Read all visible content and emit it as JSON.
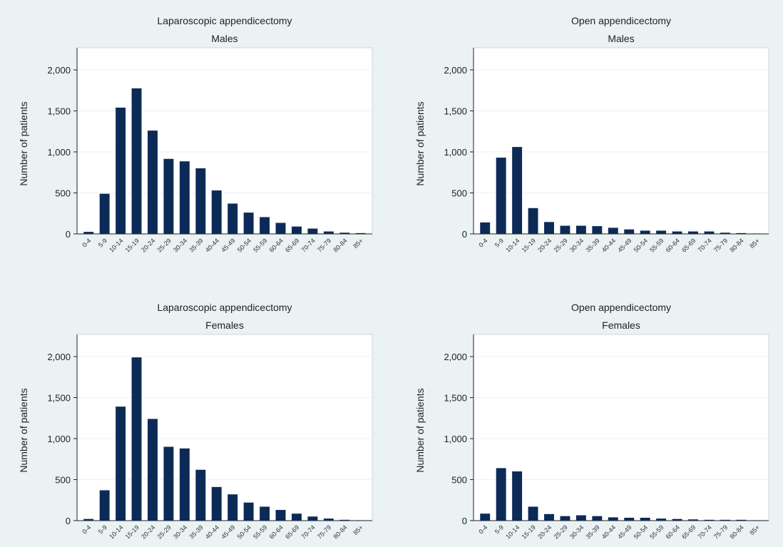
{
  "colors": {
    "bar": "#0d2a57",
    "figure_bg": "#eaf2f3",
    "plot_bg": "#ffffff"
  },
  "chart_data": [
    {
      "type": "bar",
      "title": "Laparoscopic appendicectomy",
      "subtitle": "Males",
      "xlabel": "",
      "ylabel": "Number of patients",
      "ylim": [
        0,
        2200
      ],
      "yticks": [
        "0",
        "500",
        "1,000",
        "1,500",
        "2,000"
      ],
      "ytick_values": [
        0,
        500,
        1000,
        1500,
        2000
      ],
      "grid": true,
      "categories": [
        "0-4",
        "5-9",
        "10-14",
        "15-19",
        "20-24",
        "25-29",
        "30-34",
        "35-39",
        "40-44",
        "45-49",
        "50-54",
        "55-59",
        "60-64",
        "65-69",
        "70-74",
        "75-79",
        "80-84",
        "85+"
      ],
      "values": [
        25,
        490,
        1540,
        1775,
        1260,
        915,
        885,
        800,
        530,
        370,
        260,
        205,
        135,
        90,
        65,
        30,
        15,
        10
      ]
    },
    {
      "type": "bar",
      "title": "Open appendicectomy",
      "subtitle": "Males",
      "xlabel": "",
      "ylabel": "Number of patients",
      "ylim": [
        0,
        2200
      ],
      "yticks": [
        "0",
        "500",
        "1,000",
        "1,500",
        "2,000"
      ],
      "ytick_values": [
        0,
        500,
        1000,
        1500,
        2000
      ],
      "grid": true,
      "categories": [
        "0-4",
        "5-9",
        "10-14",
        "15-19",
        "20-24",
        "25-29",
        "30-34",
        "35-39",
        "40-44",
        "45-49",
        "50-54",
        "55-59",
        "60-64",
        "65-69",
        "70-74",
        "75-79",
        "80-84",
        "85+"
      ],
      "values": [
        140,
        930,
        1060,
        315,
        145,
        100,
        100,
        95,
        75,
        55,
        40,
        40,
        30,
        30,
        30,
        15,
        10,
        5
      ]
    },
    {
      "type": "bar",
      "title": "Laparoscopic appendicectomy",
      "subtitle": "Females",
      "xlabel": "",
      "ylabel": "Number of patients",
      "ylim": [
        0,
        2200
      ],
      "yticks": [
        "0",
        "500",
        "1,000",
        "1,500",
        "2,000"
      ],
      "ytick_values": [
        0,
        500,
        1000,
        1500,
        2000
      ],
      "grid": true,
      "categories": [
        "0-4",
        "5-9",
        "10-14",
        "15-19",
        "20-24",
        "25-29",
        "30-34",
        "35-39",
        "40-44",
        "45-49",
        "50-54",
        "55-59",
        "60-64",
        "65-69",
        "70-74",
        "75-79",
        "80-84",
        "85+"
      ],
      "values": [
        20,
        370,
        1390,
        1990,
        1240,
        900,
        880,
        620,
        410,
        320,
        220,
        170,
        130,
        85,
        50,
        25,
        10,
        5
      ]
    },
    {
      "type": "bar",
      "title": "Open appendicectomy",
      "subtitle": "Females",
      "xlabel": "",
      "ylabel": "Number of patients",
      "ylim": [
        0,
        2200
      ],
      "yticks": [
        "0",
        "500",
        "1,000",
        "1,500",
        "2,000"
      ],
      "ytick_values": [
        0,
        500,
        1000,
        1500,
        2000
      ],
      "grid": true,
      "categories": [
        "0-4",
        "5-9",
        "10-14",
        "15-19",
        "20-24",
        "25-29",
        "30-34",
        "35-39",
        "40-44",
        "45-49",
        "50-54",
        "55-59",
        "60-64",
        "65-69",
        "70-74",
        "75-79",
        "80-84",
        "85+"
      ],
      "values": [
        85,
        640,
        600,
        170,
        80,
        55,
        65,
        55,
        40,
        35,
        35,
        25,
        20,
        15,
        10,
        10,
        10,
        5
      ]
    }
  ]
}
